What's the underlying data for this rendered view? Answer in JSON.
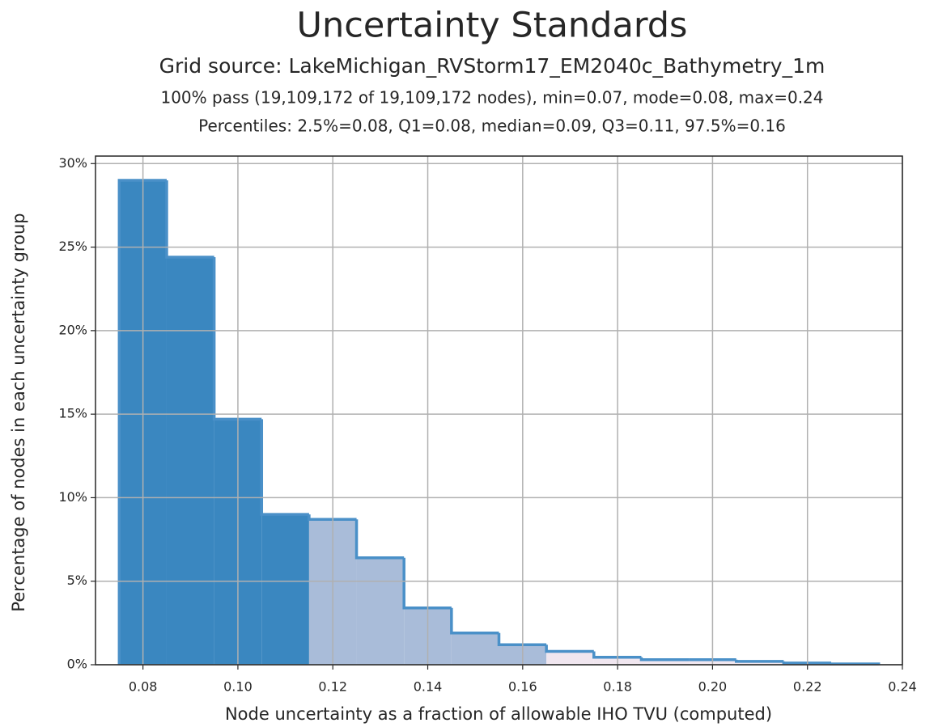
{
  "chart_data": {
    "type": "histogram",
    "title": "Uncertainty Standards",
    "subtitle": "Grid source: LakeMichigan_RVStorm17_EM2040c_Bathymetry_1m",
    "subtitle2": "100% pass (19,109,172 of 19,109,172 nodes), min=0.07, mode=0.08, max=0.24",
    "subtitle3": "Percentiles: 2.5%=0.08, Q1=0.08, median=0.09, Q3=0.11, 97.5%=0.16",
    "x_label": "Node uncertainty as a fraction of allowable IHO TVU (computed)",
    "y_label": "Percentage of nodes in each uncertainty group",
    "bins": [
      0.075,
      0.085,
      0.095,
      0.105,
      0.115,
      0.125,
      0.135,
      0.145,
      0.155,
      0.165,
      0.175,
      0.185,
      0.195,
      0.205,
      0.215,
      0.225,
      0.235
    ],
    "values": [
      29,
      24.4,
      14.7,
      9.0,
      8.7,
      6.4,
      3.4,
      1.9,
      1.2,
      0.8,
      0.45,
      0.3,
      0.3,
      0.2,
      0.1,
      0.05
    ],
    "colors": [
      "#3a87c0",
      "#3a87c0",
      "#3a87c0",
      "#3a87c0",
      "#a9bcd9",
      "#a9bcd9",
      "#a9bcd9",
      "#a9bcd9",
      "#a9bcd9",
      "#f0e6ef",
      "#f0e6ef",
      "#f0e6ef",
      "#f0e6ef",
      "#f0e6ef",
      "#f0e6ef",
      "#f0e6ef"
    ],
    "edge_color": "#4a90c8",
    "xlim": [
      0.07,
      0.24
    ],
    "ylim": [
      0,
      30.45
    ],
    "xticks": [
      0.08,
      {
        "value": 0.1,
        "label": "0.10"
      },
      0.12,
      0.14,
      0.16,
      0.18,
      {
        "value": 0.2,
        "label": "0.20"
      },
      0.22,
      0.24
    ],
    "yticks": [
      {
        "value": 0,
        "label": "0%"
      },
      {
        "value": 5,
        "label": "5%"
      },
      {
        "value": 10,
        "label": "10%"
      },
      {
        "value": 15,
        "label": "15%"
      },
      {
        "value": 20,
        "label": "20%"
      },
      {
        "value": 25,
        "label": "25%"
      },
      {
        "value": 30,
        "label": "30%"
      }
    ],
    "grid": true
  }
}
